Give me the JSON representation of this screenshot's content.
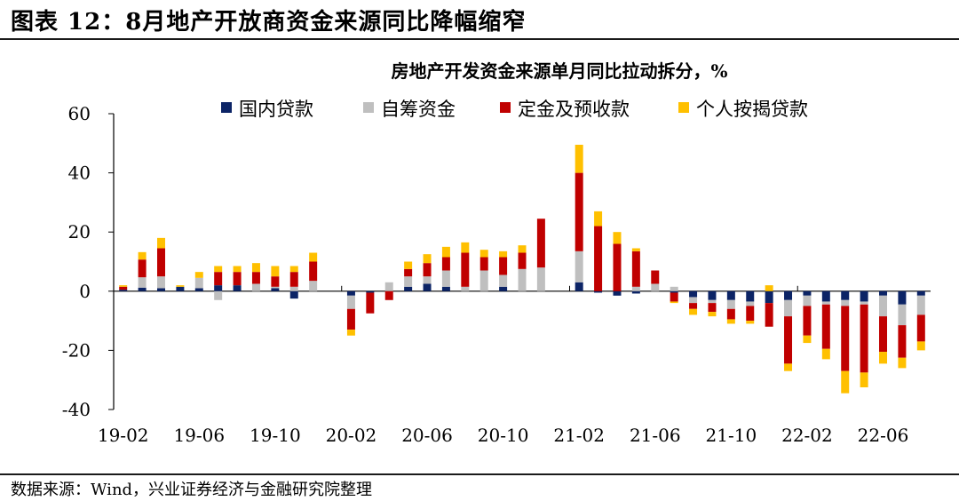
{
  "figure": {
    "title": "图表 12：8月地产开放商资金来源同比降幅缩窄",
    "source": "数据来源：Wind，兴业证券经济与金融研究院整理"
  },
  "chart_data": {
    "type": "bar",
    "stacked": true,
    "title": "房地产开发资金来源单月同比拉动拆分，%",
    "xlabel": "",
    "ylabel": "",
    "ylim": [
      -40,
      60
    ],
    "yticks": [
      -40,
      -20,
      0,
      20,
      40,
      60
    ],
    "ytick_labels": [
      "-40",
      "-20",
      "0",
      "20",
      "40",
      "60"
    ],
    "legend_position": "top",
    "categories": [
      "19-02",
      "19-03",
      "19-04",
      "19-05",
      "19-06",
      "19-07",
      "19-08",
      "19-09",
      "19-10",
      "19-11",
      "19-12",
      "20-01",
      "20-02",
      "20-03",
      "20-04",
      "20-05",
      "20-06",
      "20-07",
      "20-08",
      "20-09",
      "20-10",
      "20-11",
      "20-12",
      "21-01",
      "21-02",
      "21-03",
      "21-04",
      "21-05",
      "21-06",
      "21-07",
      "21-08",
      "21-09",
      "21-10",
      "21-11",
      "21-12",
      "22-01",
      "22-02",
      "22-03",
      "22-04",
      "22-05",
      "22-06",
      "22-07",
      "22-08"
    ],
    "xtick_labels": [
      "19-02",
      "",
      "",
      "",
      "19-06",
      "",
      "",
      "",
      "19-10",
      "",
      "",
      "",
      "20-02",
      "",
      "",
      "",
      "20-06",
      "",
      "",
      "",
      "20-10",
      "",
      "",
      "",
      "21-02",
      "",
      "",
      "",
      "21-06",
      "",
      "",
      "",
      "21-10",
      "",
      "",
      "",
      "22-02",
      "",
      "",
      "",
      "22-06",
      "",
      ""
    ],
    "series": [
      {
        "name": "国内贷款",
        "color": "#0c2466",
        "values": [
          0.5,
          1.2,
          1.0,
          1.5,
          1.0,
          2.0,
          2.0,
          0.0,
          1.0,
          -2.5,
          0.0,
          0.0,
          -1.5,
          -0.5,
          0.0,
          1.5,
          2.5,
          1.5,
          0.0,
          0.0,
          1.5,
          0.0,
          0.0,
          0.0,
          3.0,
          -0.5,
          -1.5,
          -0.8,
          0.0,
          -0.5,
          -2.0,
          -3.0,
          -3.0,
          -3.5,
          -4.0,
          -3.0,
          -1.5,
          -3.5,
          -3.0,
          -3.5,
          -1.5,
          -4.5,
          -1.5
        ]
      },
      {
        "name": "自筹资金",
        "color": "#bfbfbf",
        "values": [
          0.0,
          3.5,
          4.0,
          0.0,
          3.5,
          -3.0,
          0.0,
          2.5,
          0.5,
          1.5,
          3.5,
          0.0,
          -4.5,
          0.0,
          3.0,
          3.5,
          2.5,
          5.5,
          1.5,
          7.0,
          4.0,
          7.5,
          8.0,
          0.0,
          10.5,
          0.0,
          0.0,
          1.5,
          2.5,
          1.5,
          -2.0,
          -1.0,
          -3.0,
          -1.5,
          0.0,
          -5.5,
          -3.5,
          -1.0,
          -2.0,
          -1.0,
          -7.0,
          -7.0,
          -6.5
        ]
      },
      {
        "name": "定金及预收款",
        "color": "#c00000",
        "values": [
          1.0,
          6.0,
          9.5,
          0.0,
          0.0,
          4.5,
          4.5,
          4.0,
          3.5,
          5.0,
          6.5,
          0.0,
          -7.0,
          -7.0,
          -3.0,
          2.5,
          4.5,
          4.5,
          11.5,
          4.5,
          6.0,
          5.5,
          16.5,
          0.0,
          26.5,
          22.0,
          16.0,
          12.0,
          4.5,
          -3.0,
          -2.0,
          -3.0,
          -3.5,
          -5.0,
          -8.0,
          -16.0,
          -10.0,
          -15.0,
          -22.0,
          -23.0,
          -12.0,
          -11.0,
          -9.0
        ]
      },
      {
        "name": "个人按揭贷款",
        "color": "#ffc000",
        "values": [
          0.5,
          2.5,
          3.5,
          0.5,
          2.0,
          2.0,
          2.0,
          3.0,
          3.5,
          2.0,
          3.0,
          0.0,
          -2.0,
          0.0,
          0.0,
          2.5,
          3.0,
          3.5,
          3.5,
          2.5,
          2.0,
          2.5,
          0.0,
          0.0,
          9.5,
          5.0,
          4.0,
          1.0,
          0.0,
          -0.5,
          -2.0,
          -1.5,
          -1.5,
          -1.0,
          2.0,
          -2.5,
          -2.5,
          -3.5,
          -7.5,
          -5.0,
          -4.0,
          -3.5,
          -3.0
        ]
      }
    ]
  }
}
